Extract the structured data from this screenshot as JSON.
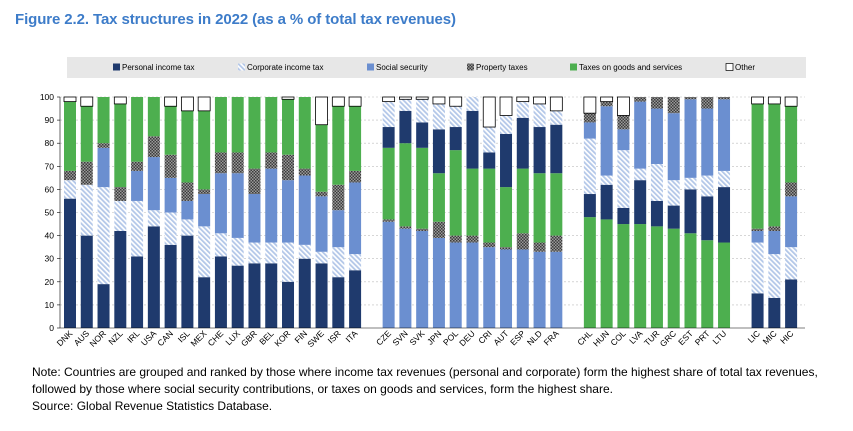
{
  "chart_data": {
    "type": "bar",
    "stacked": true,
    "title": "Figure 2.2. Tax structures in 2022 (as a % of total tax revenues)",
    "xlabel": "",
    "ylabel": "",
    "ylim": [
      0,
      100
    ],
    "yticks": [
      0,
      10,
      20,
      30,
      40,
      50,
      60,
      70,
      80,
      90,
      100
    ],
    "grid": "horizontal-dashed",
    "legend": "top",
    "series": [
      {
        "name": "Personal income tax",
        "color": "#1f3a6d",
        "pattern": "solid",
        "values": [
          56,
          40,
          19,
          42,
          31,
          44,
          36,
          40,
          22,
          31,
          27,
          28,
          28,
          20,
          30,
          28,
          22,
          25,
          9,
          14,
          11,
          19,
          10,
          25,
          7,
          23,
          22,
          20,
          21,
          10,
          15,
          7,
          19,
          11,
          10,
          19,
          19,
          24,
          15,
          13,
          21
        ]
      },
      {
        "name": "Corporate income tax",
        "color": "#b3c7e8",
        "pattern": "hatch",
        "values": [
          8,
          22,
          42,
          13,
          24,
          7,
          14,
          7,
          22,
          10,
          12,
          9,
          9,
          17,
          6,
          5,
          13,
          7,
          11,
          5,
          10,
          11,
          9,
          6,
          11,
          8,
          7,
          10,
          6,
          24,
          4,
          25,
          5,
          16,
          11,
          5,
          9,
          7,
          22,
          19,
          14
        ]
      },
      {
        "name": "Social security",
        "color": "#6b8fd0",
        "pattern": "solid",
        "values": [
          0,
          0,
          17,
          0,
          13,
          23,
          15,
          8,
          14,
          26,
          28,
          21,
          32,
          27,
          30,
          24,
          16,
          31,
          46,
          43,
          42,
          39,
          37,
          37,
          35,
          34,
          34,
          33,
          33,
          7,
          30,
          9,
          29,
          24,
          29,
          34,
          29,
          31,
          5,
          10,
          22
        ]
      },
      {
        "name": "Property taxes",
        "color": "#7f7f7f",
        "pattern": "dots",
        "values": [
          4,
          10,
          2,
          6,
          4,
          9,
          10,
          8,
          2,
          9,
          9,
          11,
          7,
          11,
          3,
          2,
          11,
          5,
          1,
          1,
          1,
          7,
          3,
          3,
          2,
          1,
          7,
          4,
          7,
          4,
          2,
          6,
          2,
          5,
          7,
          1,
          5,
          1,
          1,
          2,
          6
        ]
      },
      {
        "name": "Taxes on goods and services",
        "color": "#4daf4f",
        "pattern": "solid",
        "values": [
          30,
          24,
          20,
          36,
          28,
          17,
          21,
          31,
          34,
          24,
          24,
          31,
          24,
          24,
          31,
          29,
          34,
          28,
          31,
          36,
          35,
          21,
          37,
          29,
          32,
          26,
          28,
          30,
          27,
          48,
          47,
          45,
          45,
          44,
          43,
          41,
          38,
          37,
          54,
          53,
          33
        ]
      },
      {
        "name": "Other",
        "color": "#ffffff",
        "pattern": "outline",
        "values": [
          2,
          4,
          0,
          3,
          0,
          0,
          4,
          6,
          6,
          0,
          0,
          0,
          0,
          1,
          0,
          12,
          4,
          4,
          2,
          1,
          1,
          3,
          4,
          0,
          13,
          8,
          2,
          3,
          6,
          7,
          2,
          8,
          0,
          0,
          0,
          0,
          0,
          0,
          3,
          3,
          4
        ]
      }
    ],
    "groups": [
      {
        "categories": [
          "DNK",
          "AUS",
          "NOR",
          "NZL",
          "IRL",
          "USA",
          "CAN",
          "ISL",
          "MEX",
          "CHE",
          "LUX",
          "GBR",
          "BEL",
          "KOR",
          "FIN",
          "SWE",
          "ISR",
          "ITA"
        ],
        "stack_order": [
          "Personal income tax",
          "Corporate income tax",
          "Social security",
          "Property taxes",
          "Taxes on goods and services",
          "Other"
        ]
      },
      {
        "categories": [
          "CZE",
          "SVN",
          "SVK",
          "JPN",
          "POL",
          "DEU",
          "CRI",
          "AUT",
          "ESP",
          "NLD",
          "FRA"
        ],
        "stack_order": [
          "Social security",
          "Property taxes",
          "Taxes on goods and services",
          "Personal income tax",
          "Corporate income tax",
          "Other"
        ]
      },
      {
        "categories": [
          "CHL",
          "HUN",
          "COL",
          "LVA",
          "TUR",
          "GRC",
          "EST",
          "PRT",
          "LTU"
        ],
        "stack_order": [
          "Taxes on goods and services",
          "Personal income tax",
          "Corporate income tax",
          "Social security",
          "Property taxes",
          "Other"
        ]
      },
      {
        "categories": [
          "LIC",
          "MIC",
          "HIC"
        ],
        "stack_order": [
          "Personal income tax",
          "Corporate income tax",
          "Social security",
          "Property taxes",
          "Taxes on goods and services",
          "Other"
        ]
      }
    ]
  },
  "note": "Note: Countries are grouped and ranked by those where income tax revenues (personal and corporate) form the highest share of total tax revenues, followed by those where social security contributions, or taxes on goods and services, form the highest share.",
  "source": "Source: Global Revenue Statistics Database."
}
